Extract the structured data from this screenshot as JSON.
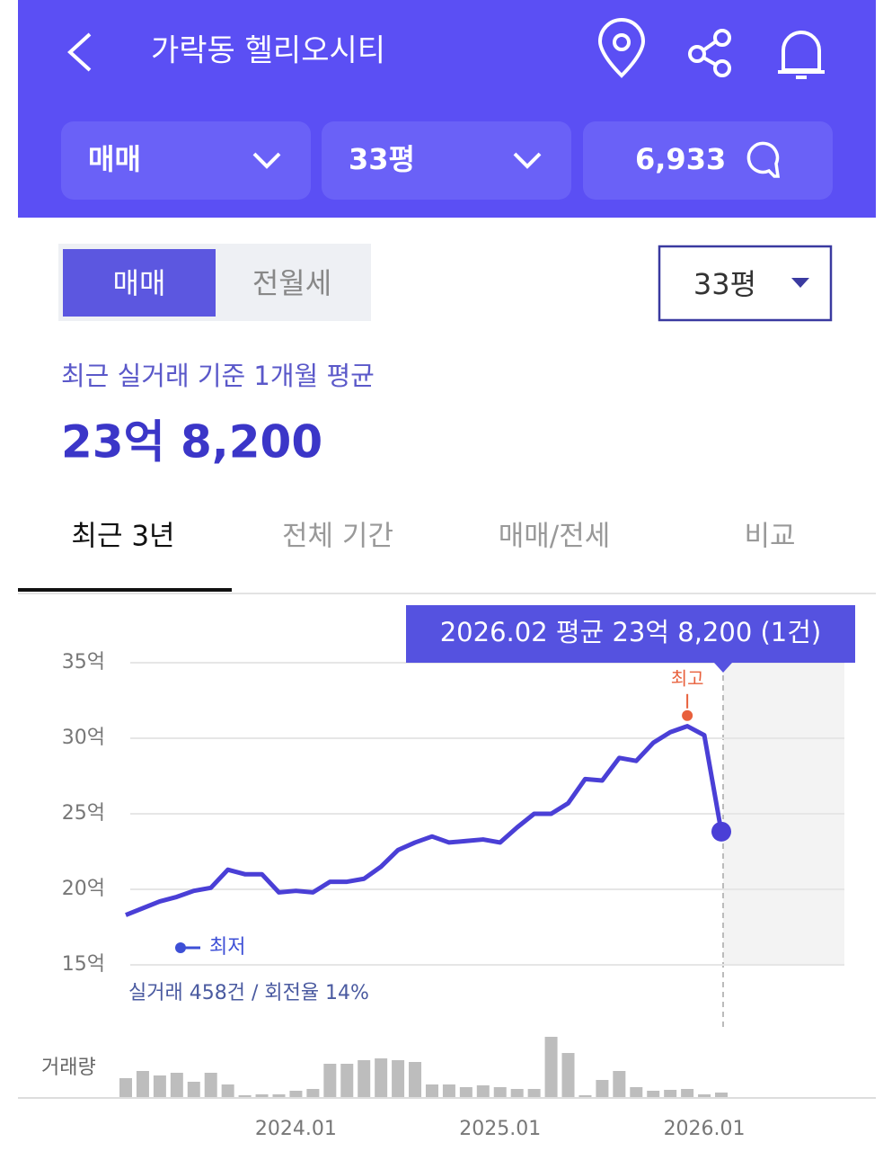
{
  "header": {
    "title": "가락동 헬리오시티",
    "filters": [
      "매매",
      "33평",
      "6,933"
    ]
  },
  "toggle": {
    "options": [
      "매매",
      "전월세"
    ],
    "size": "33평"
  },
  "summary": {
    "label": "최근 실거래 기준 1개월 평균",
    "price": "23억 8,200"
  },
  "period_tabs": [
    "최근 3년",
    "전체 기간",
    "매매/전세",
    "비교"
  ],
  "chart_data": {
    "type": "line",
    "tooltip": "2026.02 평균 23억 8,200 (1건)",
    "color": "#4a3fd6",
    "grid": true,
    "x": [
      "2023.03",
      "2023.04",
      "2023.05",
      "2023.06",
      "2023.07",
      "2023.08",
      "2023.09",
      "2023.10",
      "2023.11",
      "2023.12",
      "2024.01",
      "2024.02",
      "2024.03",
      "2024.04",
      "2024.05",
      "2024.06",
      "2024.07",
      "2024.08",
      "2024.09",
      "2024.10",
      "2024.11",
      "2024.12",
      "2025.01",
      "2025.02",
      "2025.03",
      "2025.04",
      "2025.05",
      "2025.06",
      "2025.07",
      "2025.08",
      "2025.09",
      "2025.10",
      "2025.11",
      "2025.12",
      "2026.01",
      "2026.02"
    ],
    "values": [
      18.3,
      18.75,
      19.2,
      19.5,
      19.9,
      20.1,
      21.3,
      21.0,
      21.0,
      19.8,
      19.9,
      19.8,
      20.5,
      20.5,
      20.7,
      21.5,
      22.6,
      23.1,
      23.5,
      23.1,
      23.2,
      23.3,
      23.1,
      24.1,
      25.0,
      25.0,
      25.7,
      27.3,
      27.2,
      28.7,
      28.5,
      29.7,
      30.4,
      30.8,
      30.2,
      23.82
    ],
    "xlim": [
      "2023.03",
      "2026.02"
    ],
    "xticks": [
      "2024.01",
      "2025.01",
      "2026.01"
    ],
    "ylim": [
      15,
      35
    ],
    "yticks": [
      {
        "value": 15,
        "label": "15억"
      },
      {
        "value": 20,
        "label": "20억"
      },
      {
        "value": 25,
        "label": "25억"
      },
      {
        "value": 30,
        "label": "30억"
      },
      {
        "value": 35,
        "label": "35억"
      }
    ],
    "high": {
      "label": "최고",
      "x": "2025.12",
      "value": 31.5
    },
    "low_label": "최저",
    "stats": "실거래 458건 / 회전율 14%",
    "volume": {
      "label": "거래량",
      "color": "#bdbdbd",
      "values": [
        22,
        30,
        25,
        28,
        18,
        28,
        15,
        3,
        4,
        4,
        8,
        10,
        38,
        38,
        42,
        44,
        42,
        40,
        15,
        15,
        12,
        14,
        12,
        10,
        10,
        68,
        50,
        3,
        20,
        30,
        12,
        8,
        9,
        10,
        4,
        6
      ]
    }
  }
}
